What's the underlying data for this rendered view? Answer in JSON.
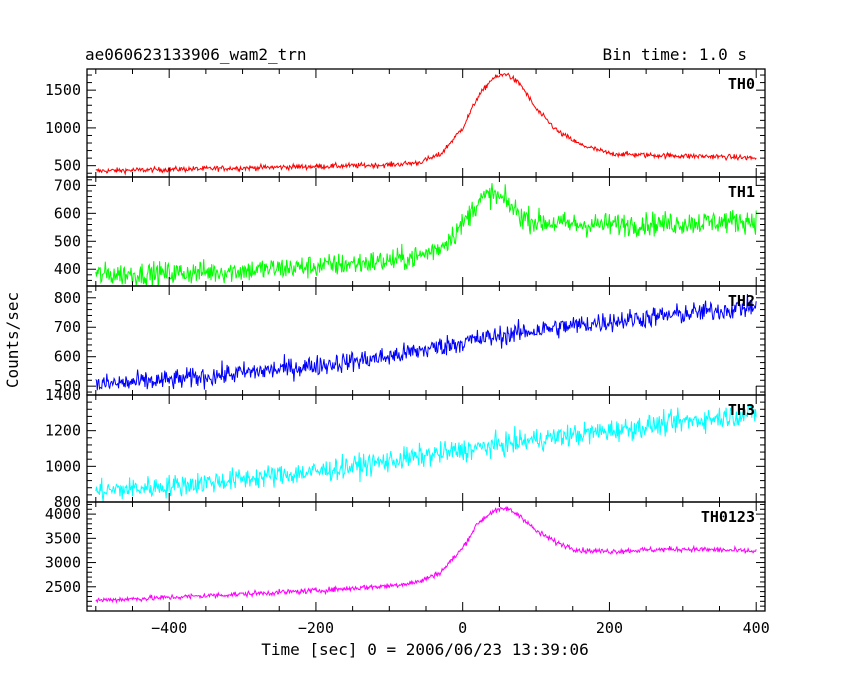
{
  "chart_data": {
    "type": "line",
    "title": "ae060623133906_wam2_trn",
    "bin_time_label": "Bin time: 1.0 s",
    "xlabel": "Time [sec] 0 = 2006/06/23 13:39:06",
    "ylabel": "Counts/sec",
    "xlim": [
      -512,
      412
    ],
    "x_ticks": [
      -400,
      -200,
      0,
      200,
      400
    ],
    "x_tick_labels": [
      "−400",
      "−200",
      "0",
      "200",
      "400"
    ],
    "panels": [
      {
        "label": "TH0",
        "color": "#ff0000",
        "ylim": [
          350,
          1780
        ],
        "y_ticks": [
          500,
          1000,
          1500
        ],
        "y_tick_labels": [
          "500",
          "1000",
          "1500"
        ],
        "noise": 25,
        "series": {
          "name": "TH0",
          "x": [
            -500,
            -400,
            -300,
            -200,
            -100,
            -60,
            -30,
            0,
            20,
            40,
            60,
            80,
            100,
            130,
            160,
            200,
            250,
            300,
            350,
            400
          ],
          "y": [
            430,
            450,
            470,
            490,
            510,
            540,
            650,
            1000,
            1400,
            1650,
            1720,
            1560,
            1250,
            950,
            780,
            660,
            640,
            630,
            620,
            600
          ]
        }
      },
      {
        "label": "TH1",
        "color": "#00ff00",
        "ylim": [
          340,
          730
        ],
        "y_ticks": [
          400,
          500,
          600,
          700
        ],
        "y_tick_labels": [
          "400",
          "500",
          "600",
          "700"
        ],
        "noise": 30,
        "series": {
          "name": "TH1",
          "x": [
            -500,
            -400,
            -300,
            -200,
            -100,
            -60,
            -30,
            0,
            20,
            40,
            60,
            80,
            100,
            150,
            200,
            300,
            400
          ],
          "y": [
            380,
            385,
            395,
            410,
            430,
            445,
            480,
            560,
            640,
            670,
            640,
            590,
            570,
            560,
            560,
            565,
            575
          ]
        }
      },
      {
        "label": "TH2",
        "color": "#0000ff",
        "ylim": [
          470,
          840
        ],
        "y_ticks": [
          500,
          600,
          700,
          800
        ],
        "y_tick_labels": [
          "500",
          "600",
          "700",
          "800"
        ],
        "noise": 25,
        "series": {
          "name": "TH2",
          "x": [
            -500,
            -400,
            -300,
            -200,
            -100,
            0,
            100,
            200,
            300,
            400
          ],
          "y": [
            505,
            520,
            545,
            570,
            600,
            650,
            690,
            720,
            745,
            770
          ]
        }
      },
      {
        "label": "TH3",
        "color": "#00ffff",
        "ylim": [
          800,
          1400
        ],
        "y_ticks": [
          800,
          1000,
          1200,
          1400
        ],
        "y_tick_labels": [
          "800",
          "1000",
          "1200",
          "1400"
        ],
        "noise": 45,
        "series": {
          "name": "TH3",
          "x": [
            -500,
            -400,
            -300,
            -200,
            -100,
            0,
            100,
            200,
            300,
            400
          ],
          "y": [
            860,
            890,
            930,
            970,
            1030,
            1090,
            1150,
            1200,
            1250,
            1300
          ]
        }
      },
      {
        "label": "TH0123",
        "color": "#ff00ff",
        "ylim": [
          2000,
          4250
        ],
        "y_ticks": [
          2500,
          3000,
          3500,
          4000
        ],
        "y_tick_labels": [
          "2500",
          "3000",
          "3500",
          "4000"
        ],
        "noise": 40,
        "series": {
          "name": "TH0123",
          "x": [
            -500,
            -400,
            -300,
            -200,
            -100,
            -60,
            -30,
            0,
            20,
            40,
            60,
            80,
            100,
            130,
            160,
            200,
            250,
            300,
            350,
            400
          ],
          "y": [
            2220,
            2280,
            2350,
            2420,
            2520,
            2600,
            2800,
            3300,
            3800,
            4050,
            4120,
            3950,
            3650,
            3400,
            3250,
            3230,
            3260,
            3280,
            3260,
            3230
          ]
        }
      }
    ]
  }
}
